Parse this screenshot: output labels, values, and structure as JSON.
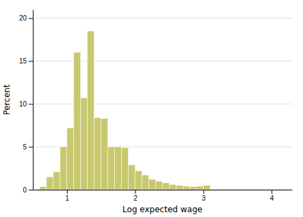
{
  "chart_data": {
    "type": "histogram",
    "xlabel": "Log expected wage",
    "ylabel": "Percent",
    "bins": [
      0.6,
      0.7,
      0.8,
      0.9,
      1.0,
      1.1,
      1.2,
      1.3,
      1.4,
      1.5,
      1.6,
      1.7,
      1.8,
      1.9,
      2.0,
      2.1,
      2.2,
      2.3,
      2.4,
      2.5,
      2.6,
      2.7,
      2.8,
      2.9,
      3.0,
      3.1,
      3.2
    ],
    "values": [
      0.35,
      1.5,
      2.1,
      5.0,
      7.2,
      16.0,
      10.7,
      18.5,
      8.4,
      8.3,
      5.0,
      5.0,
      4.9,
      2.9,
      2.2,
      1.7,
      1.2,
      1.0,
      0.8,
      0.6,
      0.5,
      0.4,
      0.35,
      0.4,
      0.5,
      0.0
    ],
    "color": "#c8c870",
    "xlim": [
      0.5,
      4.3
    ],
    "ylim": [
      0,
      21
    ],
    "xticks": [
      1,
      2,
      3,
      4
    ],
    "yticks": [
      0,
      5,
      10,
      15,
      20
    ],
    "grid": true
  }
}
